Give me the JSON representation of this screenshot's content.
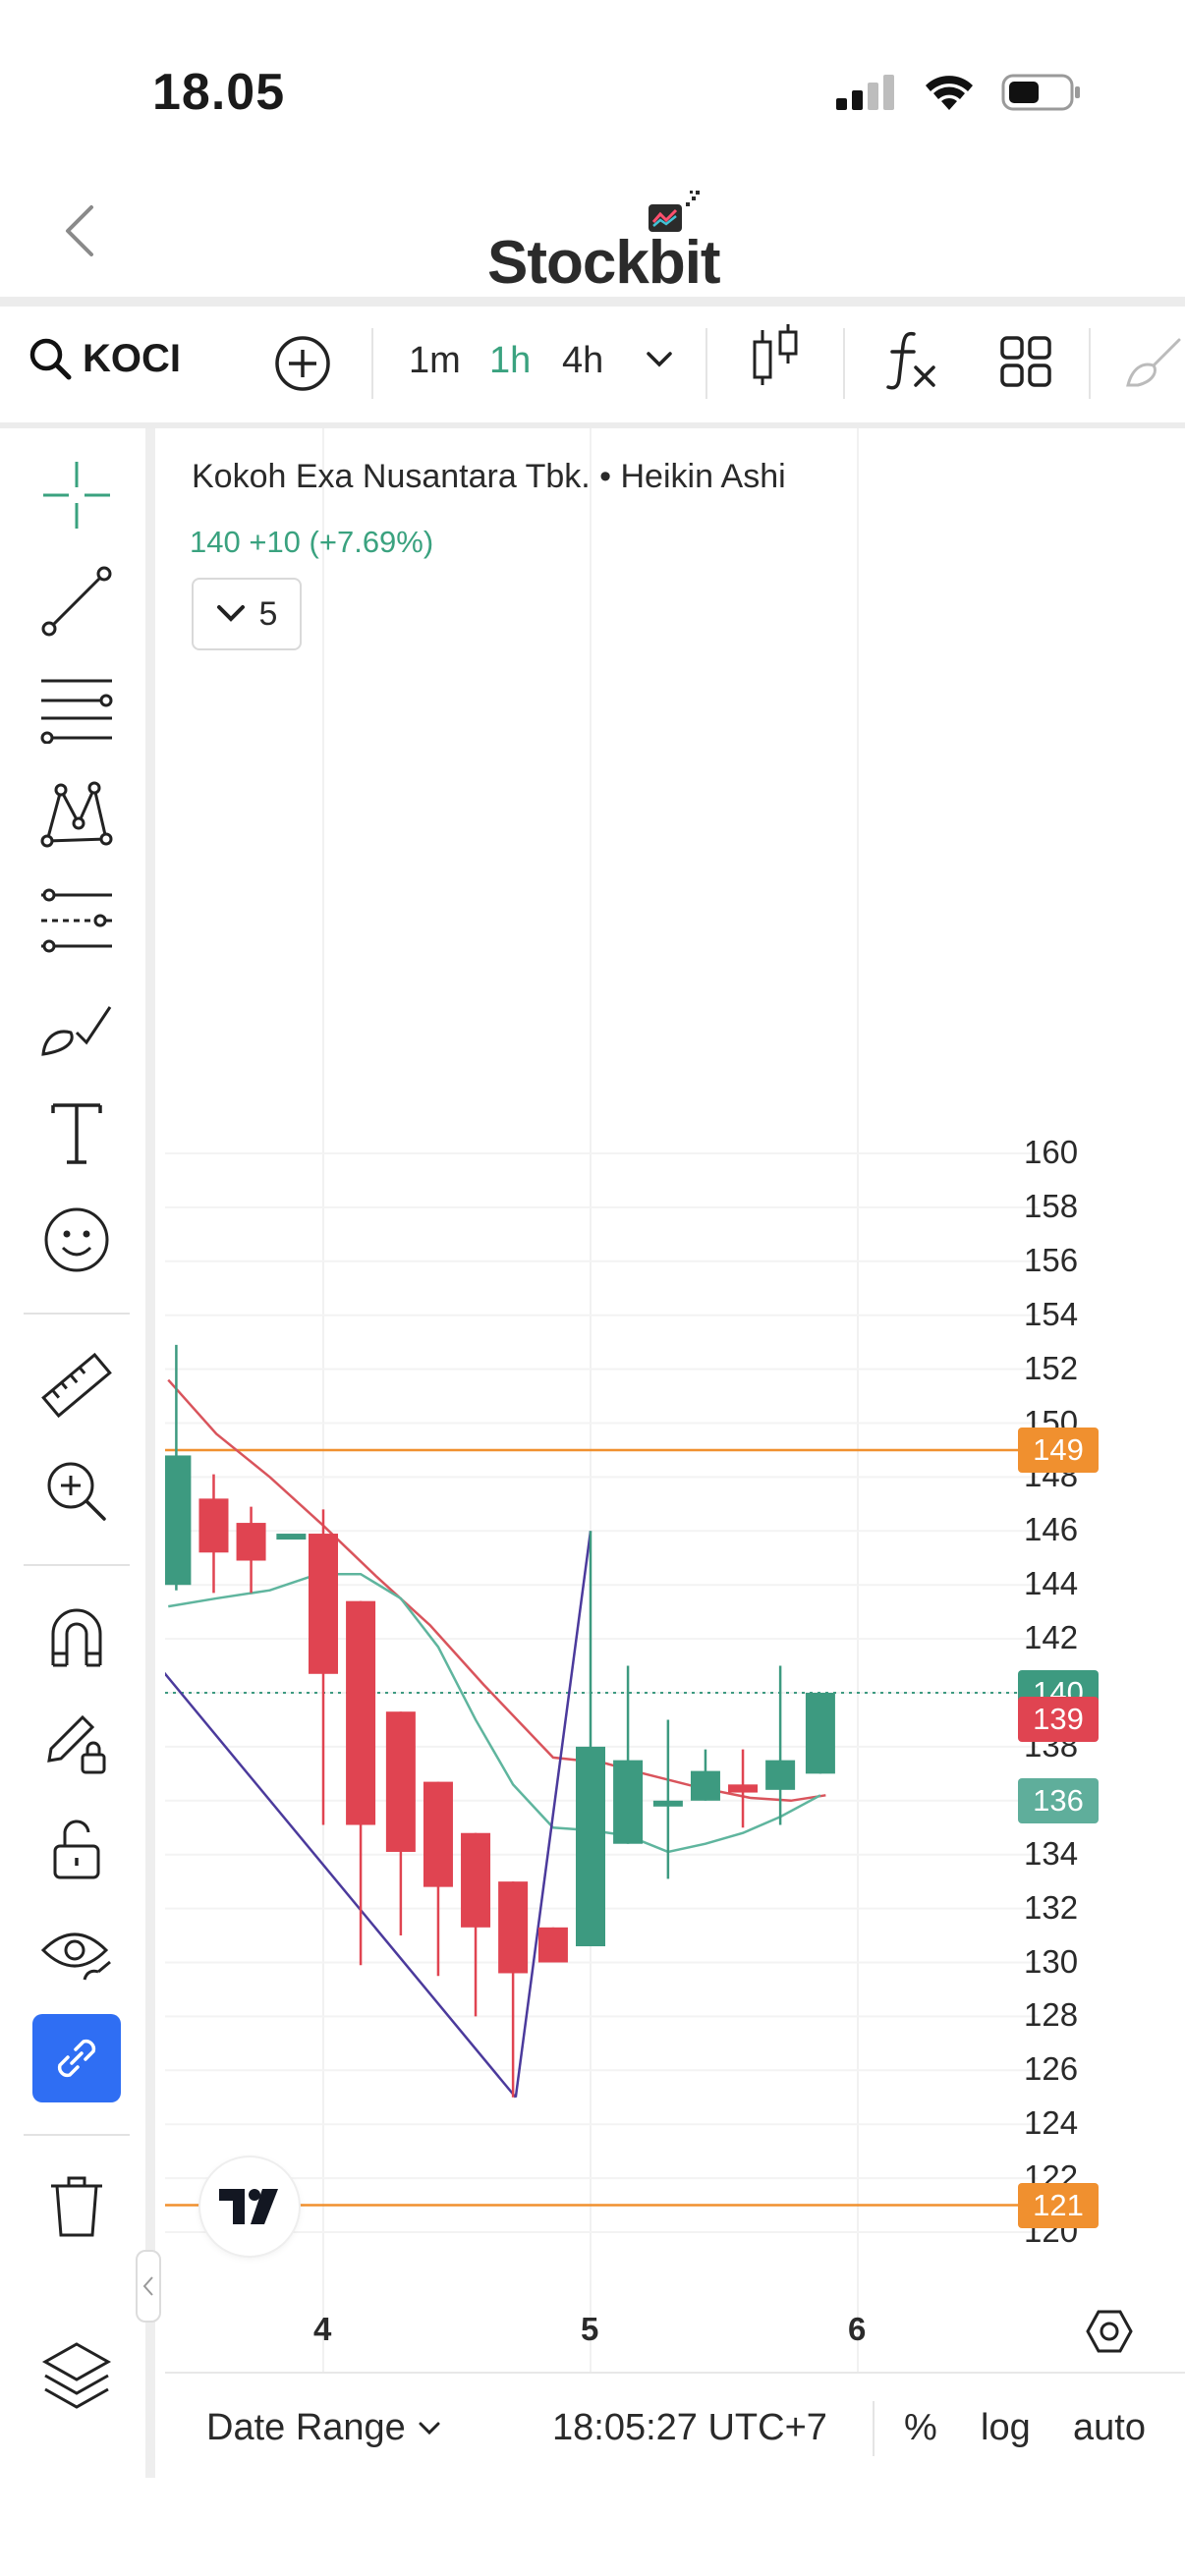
{
  "status_bar": {
    "time": "18.05"
  },
  "header": {
    "logo_text": "Stockbit"
  },
  "toolbar": {
    "symbol": "KOCI",
    "intervals": [
      {
        "label": "1m",
        "active": false
      },
      {
        "label": "1h",
        "active": true
      },
      {
        "label": "4h",
        "active": false
      }
    ]
  },
  "legend": {
    "title": "Kokoh Exa Nusantara Tbk. • Heikin Ashi",
    "price_line": "140  +10 (+7.69%)",
    "indicator_count": "5"
  },
  "price_axis": {
    "ticks": [
      "160",
      "158",
      "156",
      "154",
      "152",
      "150",
      "148",
      "146",
      "144",
      "142",
      "140",
      "138",
      "136",
      "134",
      "132",
      "130",
      "128",
      "126",
      "124",
      "122",
      "120"
    ],
    "tags": [
      {
        "label": "149",
        "color": "#f0902f"
      },
      {
        "label": "140",
        "color": "#3d9a80"
      },
      {
        "label": "139",
        "color": "#e04451"
      },
      {
        "label": "136",
        "color": "#5fae9b"
      },
      {
        "label": "121",
        "color": "#f0902f"
      }
    ]
  },
  "time_axis": {
    "ticks": [
      "4",
      "5",
      "6"
    ]
  },
  "bottom_bar": {
    "date_range": "Date Range",
    "clock": "18:05:27 UTC+7",
    "percent": "%",
    "log": "log",
    "auto": "auto"
  },
  "colors": {
    "up": "#3d9a80",
    "down": "#e04451",
    "ma_fast": "#d9545c",
    "ma_slow": "#5fb59e",
    "horizontal_line": "#f0902f",
    "trend_line": "#4b3a9c",
    "accent_active": "#2f6ef3"
  },
  "chart_data": {
    "type": "candlestick",
    "title": "Kokoh Exa Nusantara Tbk. • Heikin Ashi",
    "ylim": [
      119,
      161
    ],
    "x_range": [
      3.4,
      6.6
    ],
    "candles": [
      {
        "x": 3.45,
        "open": 144.0,
        "close": 148.8,
        "high": 152.9,
        "low": 143.8,
        "dir": "up"
      },
      {
        "x": 3.59,
        "open": 147.2,
        "close": 145.2,
        "high": 148.1,
        "low": 143.7,
        "dir": "down"
      },
      {
        "x": 3.73,
        "open": 146.3,
        "close": 144.9,
        "high": 146.9,
        "low": 143.7,
        "dir": "down"
      },
      {
        "x": 3.88,
        "open": 145.9,
        "close": 145.9,
        "high": 145.9,
        "low": 145.9,
        "dir": "up"
      },
      {
        "x": 4.0,
        "open": 145.9,
        "close": 140.7,
        "high": 146.8,
        "low": 135.1,
        "dir": "down"
      },
      {
        "x": 4.14,
        "open": 143.4,
        "close": 135.1,
        "high": 143.4,
        "low": 129.9,
        "dir": "down"
      },
      {
        "x": 4.29,
        "open": 139.3,
        "close": 134.1,
        "high": 139.3,
        "low": 131.0,
        "dir": "down"
      },
      {
        "x": 4.43,
        "open": 136.7,
        "close": 132.8,
        "high": 136.7,
        "low": 129.5,
        "dir": "down"
      },
      {
        "x": 4.57,
        "open": 134.8,
        "close": 131.3,
        "high": 134.8,
        "low": 128.0,
        "dir": "down"
      },
      {
        "x": 4.71,
        "open": 133.0,
        "close": 129.6,
        "high": 133.0,
        "low": 125.0,
        "dir": "down"
      },
      {
        "x": 4.86,
        "open": 131.3,
        "close": 130.0,
        "high": 131.3,
        "low": 130.0,
        "dir": "down"
      },
      {
        "x": 5.0,
        "open": 130.6,
        "close": 138.0,
        "high": 146.0,
        "low": 130.6,
        "dir": "up"
      },
      {
        "x": 5.14,
        "open": 134.4,
        "close": 137.5,
        "high": 141.0,
        "low": 134.4,
        "dir": "up"
      },
      {
        "x": 5.29,
        "open": 136.0,
        "close": 136.0,
        "high": 139.0,
        "low": 133.1,
        "dir": "up"
      },
      {
        "x": 5.43,
        "open": 136.0,
        "close": 137.1,
        "high": 137.9,
        "low": 136.0,
        "dir": "up"
      },
      {
        "x": 5.57,
        "open": 136.6,
        "close": 136.3,
        "high": 137.9,
        "low": 135.0,
        "dir": "down"
      },
      {
        "x": 5.71,
        "open": 136.4,
        "close": 137.5,
        "high": 141.0,
        "low": 135.1,
        "dir": "up"
      },
      {
        "x": 5.86,
        "open": 137.0,
        "close": 140.0,
        "high": 140.0,
        "low": 137.0,
        "dir": "up"
      }
    ],
    "series": [
      {
        "color": "#d9545c",
        "x": [
          3.42,
          3.6,
          3.8,
          4.0,
          4.2,
          4.4,
          4.6,
          4.86,
          5.05,
          5.2,
          5.4,
          5.6,
          5.75,
          5.88
        ],
        "values": [
          151.6,
          149.6,
          148.0,
          146.2,
          144.3,
          142.5,
          140.3,
          137.6,
          137.4,
          137.0,
          136.5,
          136.1,
          136.0,
          136.2
        ]
      },
      {
        "color": "#5fb59e",
        "x": [
          3.42,
          3.6,
          3.8,
          3.95,
          4.0,
          4.14,
          4.29,
          4.43,
          4.57,
          4.71,
          4.86,
          5.0,
          5.14,
          5.29,
          5.43,
          5.57,
          5.71,
          5.86
        ],
        "values": [
          143.2,
          143.5,
          143.8,
          144.3,
          144.4,
          144.4,
          143.5,
          141.7,
          139.0,
          136.6,
          135.0,
          134.9,
          134.7,
          134.1,
          134.4,
          134.8,
          135.4,
          136.2
        ]
      }
    ],
    "horizontal_lines": [
      {
        "y": 149,
        "color": "#f0902f",
        "style": "solid"
      },
      {
        "y": 121,
        "color": "#f0902f",
        "style": "solid"
      },
      {
        "y": 140,
        "color": "#3d9a80",
        "style": "dotted"
      }
    ],
    "trend_lines": [
      {
        "x1": 3.4,
        "y1": 140.8,
        "x2": 4.72,
        "y2": 125.0
      },
      {
        "x1": 4.72,
        "y1": 125.0,
        "x2": 5.0,
        "y2": 146.0
      }
    ]
  }
}
